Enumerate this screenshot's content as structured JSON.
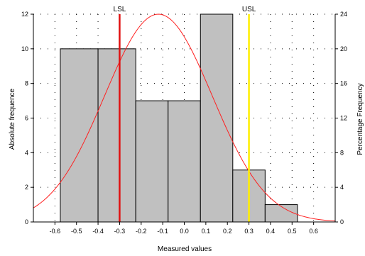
{
  "chart_data": {
    "type": "bar",
    "subtype": "histogram",
    "xlabel": "Measured values",
    "ylabel_left": "Absolute frequence",
    "ylabel_right": "Percentage Frequency",
    "xlim": [
      -0.7,
      0.7
    ],
    "ylim_left": [
      0,
      12
    ],
    "ylim_right": [
      0,
      24
    ],
    "x_ticks": [
      "-0.6",
      "-0.5",
      "-0.4",
      "-0.3",
      "-0.2",
      "-0.1",
      "0.0",
      "0.1",
      "0.2",
      "0.3",
      "0.4",
      "0.5",
      "0.6"
    ],
    "y_ticks_left": [
      "0",
      "2",
      "4",
      "6",
      "8",
      "10",
      "12"
    ],
    "y_ticks_right": [
      "0",
      "4",
      "8",
      "12",
      "16",
      "20",
      "24"
    ],
    "bins": [
      {
        "start": -0.575,
        "end": -0.4,
        "count": 10
      },
      {
        "start": -0.4,
        "end": -0.225,
        "count": 10
      },
      {
        "start": -0.225,
        "end": -0.075,
        "count": 7
      },
      {
        "start": -0.075,
        "end": 0.075,
        "count": 7
      },
      {
        "start": 0.075,
        "end": 0.225,
        "count": 12
      },
      {
        "start": 0.225,
        "end": 0.375,
        "count": 3
      },
      {
        "start": 0.375,
        "end": 0.525,
        "count": 1
      }
    ],
    "normal_curve": {
      "mean": -0.12,
      "sd": 0.25,
      "peak": 12,
      "color": "#ff2020"
    },
    "limits": [
      {
        "label": "LSL",
        "value": -0.3,
        "color": "#e01010"
      },
      {
        "label": "USL",
        "value": 0.3,
        "color": "#ffee00"
      }
    ],
    "grid": true,
    "colors": {
      "bar_fill": "#c0c0c0",
      "bar_stroke": "#000000"
    }
  }
}
